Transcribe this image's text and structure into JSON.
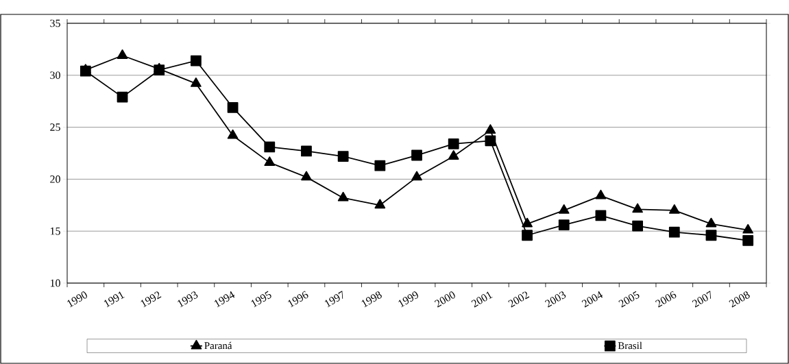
{
  "chart_data": {
    "type": "line",
    "categories": [
      "1990",
      "1991",
      "1992",
      "1993",
      "1994",
      "1995",
      "1996",
      "1997",
      "1998",
      "1999",
      "2000",
      "2001",
      "2002",
      "2003",
      "2004",
      "2005",
      "2006",
      "2007",
      "2008"
    ],
    "series": [
      {
        "name": "Paraná",
        "color": "#000000",
        "marker": "triangle",
        "values": [
          30.5,
          31.9,
          30.6,
          29.2,
          24.2,
          21.6,
          20.2,
          18.2,
          17.5,
          20.2,
          22.2,
          24.7,
          15.7,
          17.0,
          18.4,
          17.1,
          17.0,
          15.7,
          15.1
        ]
      },
      {
        "name": "Brasil",
        "color": "#000000",
        "marker": "square",
        "values": [
          30.4,
          27.9,
          30.5,
          31.4,
          26.9,
          23.1,
          22.7,
          22.2,
          21.3,
          22.3,
          23.4,
          23.7,
          14.6,
          15.6,
          16.5,
          15.5,
          14.9,
          14.6,
          14.1
        ]
      }
    ],
    "ylim": [
      10,
      35
    ],
    "yticks": [
      10,
      15,
      20,
      25,
      30,
      35
    ],
    "grid": "y",
    "legend": "bottom",
    "line_style": "solid"
  }
}
